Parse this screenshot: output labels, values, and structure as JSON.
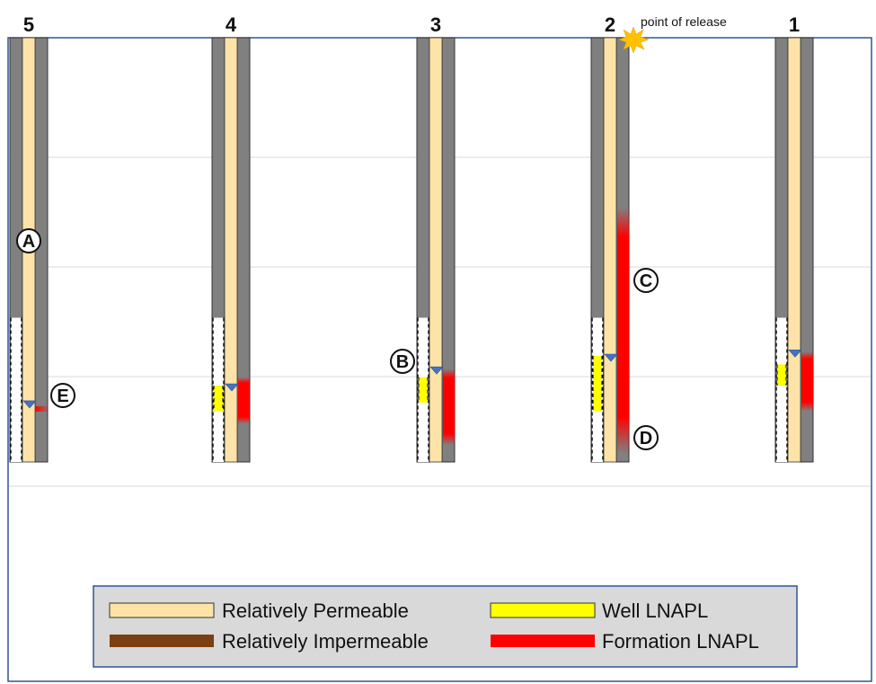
{
  "wells": [
    {
      "label": "5",
      "well_lnapl": null,
      "formation_lnapl": null,
      "water_level": 0.86
    },
    {
      "label": "4",
      "well_lnapl": [
        0.82,
        0.88
      ],
      "formation_lnapl": [
        0.8,
        0.91
      ],
      "water_level": 0.82
    },
    {
      "label": "3",
      "well_lnapl": [
        0.8,
        0.86
      ],
      "formation_lnapl": [
        0.78,
        0.96
      ],
      "water_level": 0.78
    },
    {
      "label": "2",
      "well_lnapl": [
        0.75,
        0.88
      ],
      "formation_lnapl": [
        0.4,
        0.98
      ],
      "water_level": 0.75
    },
    {
      "label": "1",
      "well_lnapl": [
        0.77,
        0.82
      ],
      "formation_lnapl": [
        0.74,
        0.88
      ],
      "water_level": 0.74
    }
  ],
  "annotations": {
    "release": "point of release",
    "A": "A",
    "B": "B",
    "C": "C",
    "D": "D",
    "E": "E"
  },
  "legend": [
    {
      "label": "Relatively Permeable",
      "color": "#fde3a7"
    },
    {
      "label": "Well LNAPL",
      "color": "#ffff00"
    },
    {
      "label": "Relatively Impermeable",
      "color": "#7b3f12"
    },
    {
      "label": "Formation LNAPL",
      "color": "#ff0000"
    }
  ],
  "colors": {
    "casing": "#808080",
    "permeable": "#fde3a7",
    "water_marker": "#4472c4",
    "frame": "#2f5597",
    "legend_bg": "#d9d9d9",
    "burst": "#ffc000"
  }
}
